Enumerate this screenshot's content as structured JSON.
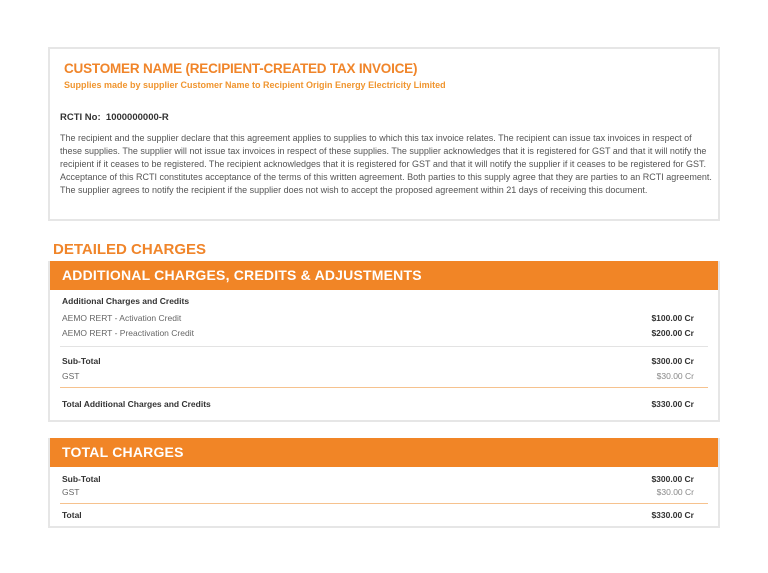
{
  "header": {
    "title": "CUSTOMER NAME (RECIPIENT-CREATED TAX INVOICE)",
    "subtitle": "Supplies made by supplier Customer Name to Recipient Origin Energy Electricity Limited",
    "rcti_label": "RCTI No:",
    "rcti_number": "1000000000-R",
    "agreement": "The recipient and the supplier declare that this agreement applies to supplies to which this tax invoice relates. The recipient can issue tax invoices in respect of these supplies. The supplier will not issue tax invoices in respect of these supplies. The supplier acknowledges that it is registered for GST and that it will notify the recipient if it ceases to be registered. The recipient acknowledges that it is registered for GST and that it will notify the supplier if it ceases to be registered for GST. Acceptance of this RCTI constitutes acceptance of the terms of this written agreement. Both parties to this supply agree that they are parties to an RCTI agreement. The supplier agrees to notify the recipient if the supplier does not wish to accept the proposed agreement within 21 days of receiving this document."
  },
  "detailed_heading": "DETAILED CHARGES",
  "additional": {
    "title": "ADDITIONAL CHARGES, CREDITS & ADJUSTMENTS",
    "section_label": "Additional Charges and Credits",
    "items": [
      {
        "label": "AEMO RERT - Activation Credit",
        "value": "$100.00 Cr"
      },
      {
        "label": "AEMO RERT - Preactivation Credit",
        "value": "$200.00 Cr"
      }
    ],
    "subtotal_label": "Sub-Total",
    "subtotal_value": "$300.00 Cr",
    "gst_label": "GST",
    "gst_value": "$30.00 Cr",
    "total_label": "Total Additional Charges and Credits",
    "total_value": "$330.00 Cr"
  },
  "totals": {
    "title": "TOTAL CHARGES",
    "subtotal_label": "Sub-Total",
    "subtotal_value": "$300.00 Cr",
    "gst_label": "GST",
    "gst_value": "$30.00 Cr",
    "total_label": "Total",
    "total_value": "$330.00 Cr"
  },
  "colors": {
    "accent": "#f18526"
  }
}
